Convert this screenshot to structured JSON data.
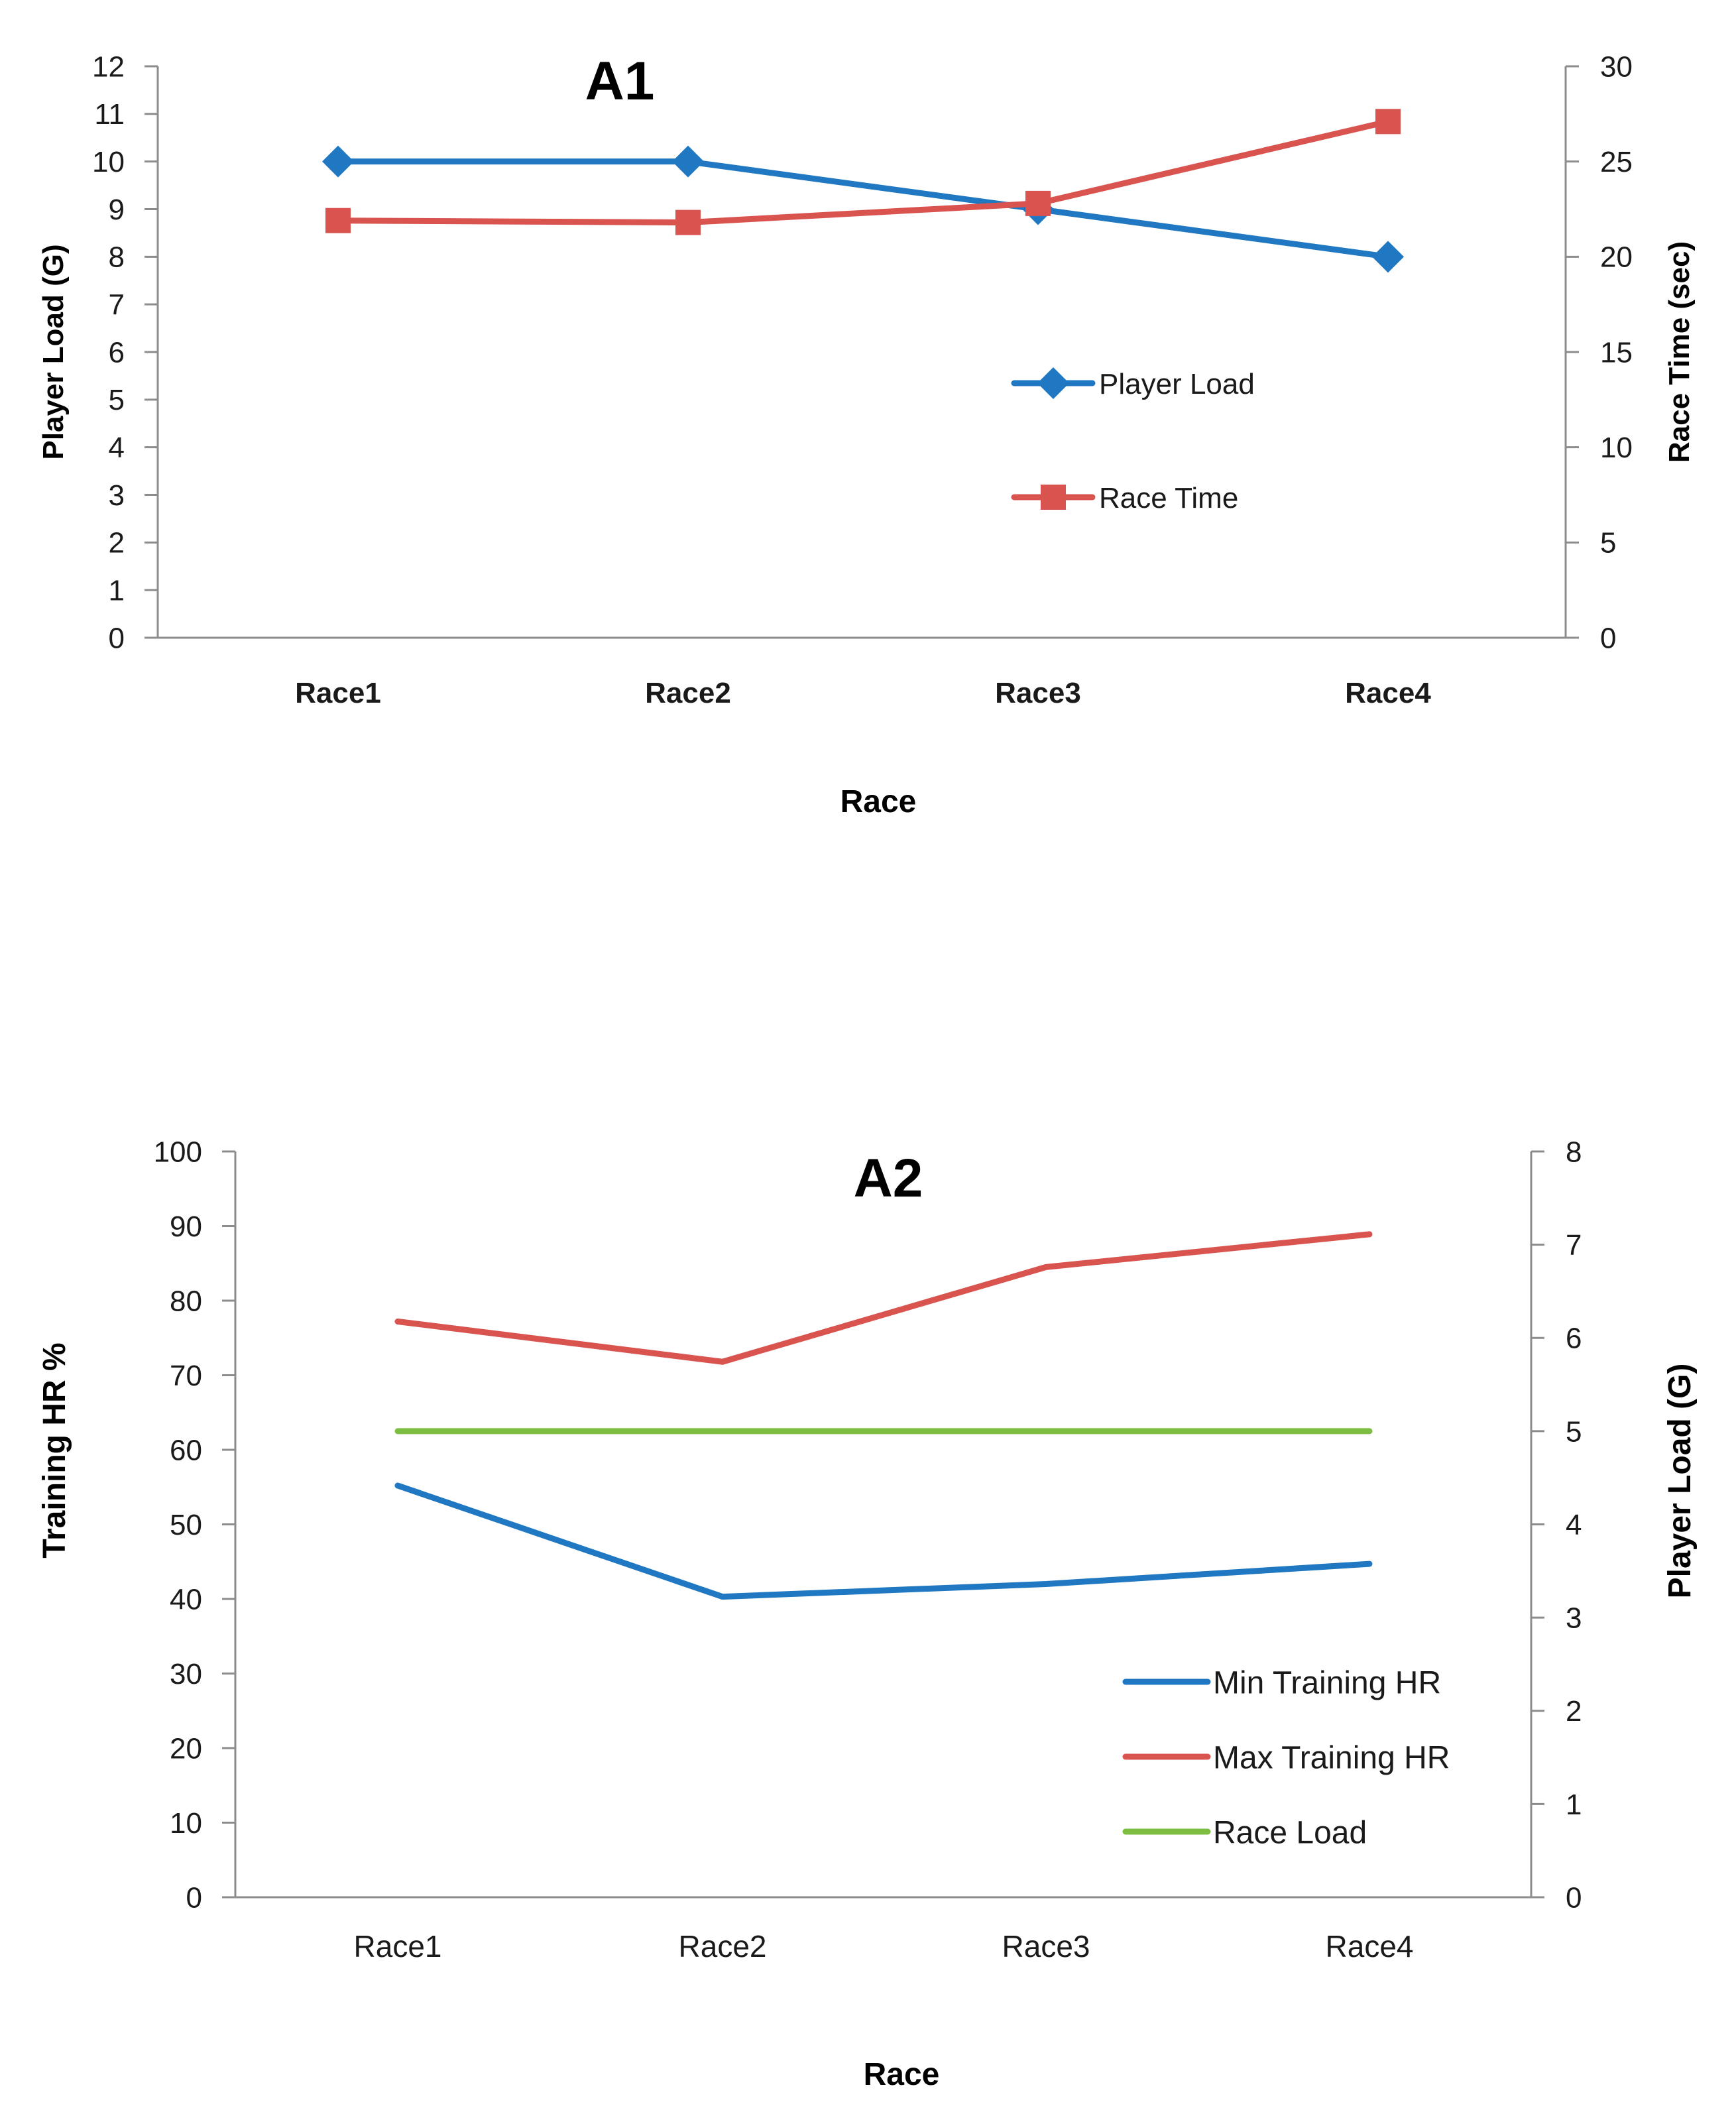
{
  "charts": [
    {
      "type": "line",
      "title": "A1",
      "xlabel": "Race",
      "ylabel_left": "Player Load (G)",
      "ylabel_right": "Race Time (sec)",
      "categories": [
        "Race1",
        "Race2",
        "Race3",
        "Race4"
      ],
      "category_bold": true,
      "y_left": {
        "min": 0,
        "max": 12,
        "step": 1
      },
      "y_right": {
        "min": 0,
        "max": 30,
        "step": 5
      },
      "series": [
        {
          "name": "Player Load",
          "axis": "left",
          "color": "#1f78c1",
          "marker": "diamond",
          "values": [
            10,
            10,
            9,
            8
          ]
        },
        {
          "name": "Race Time",
          "axis": "right",
          "color": "#d9534f",
          "marker": "square",
          "values": [
            21.9,
            21.8,
            22.8,
            27.1
          ]
        }
      ]
    },
    {
      "type": "line",
      "title": "A2",
      "xlabel": "Race",
      "ylabel_left": "Training HR %",
      "ylabel_right": "Player Load (G)",
      "categories": [
        "Race1",
        "Race2",
        "Race3",
        "Race4"
      ],
      "category_bold": false,
      "y_left": {
        "min": 0,
        "max": 100,
        "step": 10
      },
      "y_right": {
        "min": 0,
        "max": 8,
        "step": 1
      },
      "series": [
        {
          "name": "Min Training HR",
          "axis": "left",
          "color": "#1f78c1",
          "marker": "none",
          "values": [
            55.2,
            40.3,
            42,
            44.7
          ]
        },
        {
          "name": "Max Training HR",
          "axis": "left",
          "color": "#d9534f",
          "marker": "none",
          "values": [
            77.2,
            71.8,
            84.5,
            88.9
          ]
        },
        {
          "name": "Race Load",
          "axis": "right",
          "color": "#7cbd42",
          "marker": "none",
          "values": [
            5,
            5,
            5,
            5
          ]
        }
      ]
    }
  ]
}
